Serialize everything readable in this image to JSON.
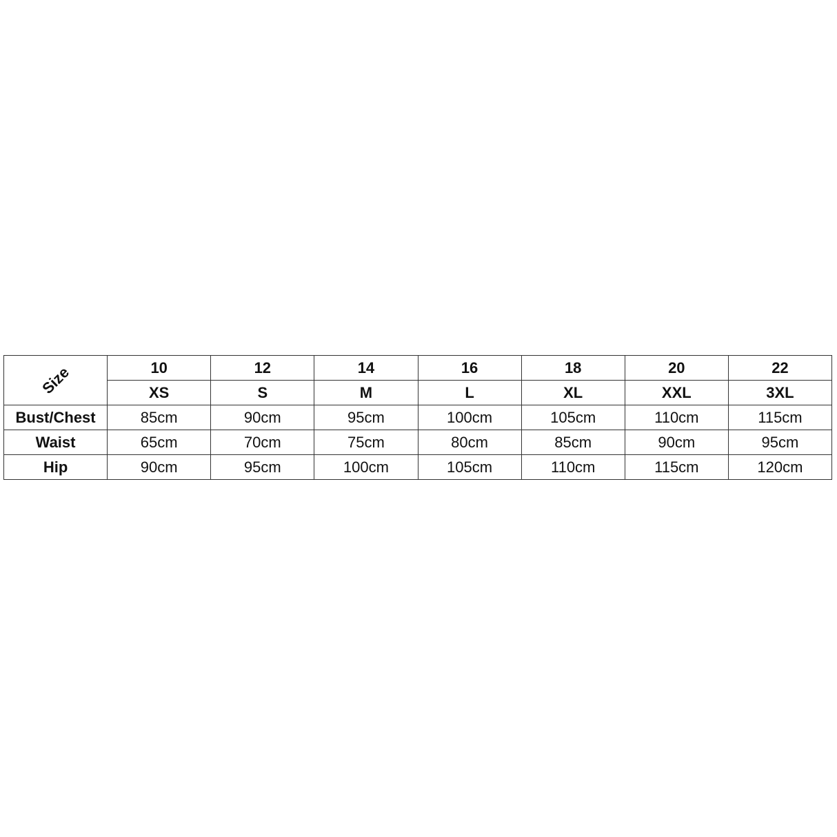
{
  "corner_label": "Size",
  "sizes_numeric": [
    "10",
    "12",
    "14",
    "16",
    "18",
    "20",
    "22"
  ],
  "sizes_letter": [
    "XS",
    "S",
    "M",
    "L",
    "XL",
    "XXL",
    "3XL"
  ],
  "rows": [
    {
      "label": "Bust/Chest",
      "values": [
        "85cm",
        "90cm",
        "95cm",
        "100cm",
        "105cm",
        "110cm",
        "115cm"
      ]
    },
    {
      "label": "Waist",
      "values": [
        "65cm",
        "70cm",
        "75cm",
        "80cm",
        "85cm",
        "90cm",
        "95cm"
      ]
    },
    {
      "label": "Hip",
      "values": [
        "90cm",
        "95cm",
        "100cm",
        "105cm",
        "110cm",
        "115cm",
        "120cm"
      ]
    }
  ]
}
